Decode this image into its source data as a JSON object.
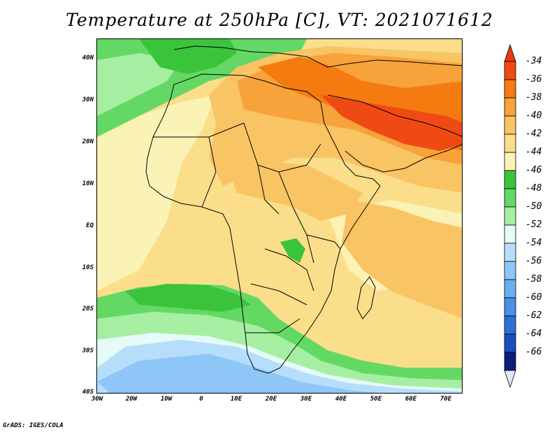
{
  "title": "Temperature at 250hPa [C], VT: 2021071612",
  "credit": "GrADS: IGES/COLA",
  "lat_labels": [
    "40N",
    "30N",
    "20N",
    "10N",
    "EQ",
    "10S",
    "20S",
    "30S",
    "40S"
  ],
  "lon_labels": [
    "30W",
    "20W",
    "10W",
    "0",
    "10E",
    "20E",
    "30E",
    "40E",
    "50E",
    "60E",
    "70E"
  ],
  "colorbar": {
    "labels": [
      "-34",
      "-36",
      "-38",
      "-40",
      "-42",
      "-44",
      "-46",
      "-48",
      "-50",
      "-52",
      "-54",
      "-56",
      "-58",
      "-60",
      "-62",
      "-64",
      "-66"
    ],
    "colors": [
      "#f04a14",
      "#f57a10",
      "#f7a23a",
      "#f9c463",
      "#fbde8a",
      "#fbf3b6",
      "#3ac43c",
      "#64d864",
      "#a6eea2",
      "#e4fbf7",
      "#b6defc",
      "#8ec6f7",
      "#6aaef1",
      "#4a91e6",
      "#2c70d5",
      "#1b4fbe",
      "#0b1f7a"
    ]
  }
}
